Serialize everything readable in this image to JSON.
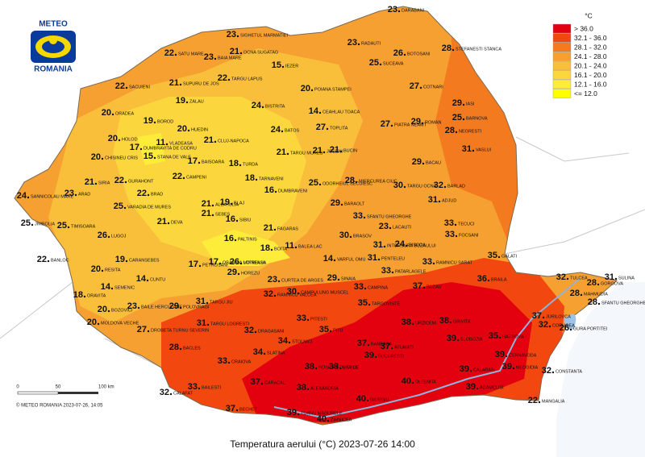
{
  "header": {
    "logo_top": "METEO",
    "logo_bottom": "ROMANIA"
  },
  "legend": {
    "unit": "°C",
    "classes": [
      {
        "label": "> 36.0",
        "color": "#e3000f"
      },
      {
        "label": "32.1 - 36.0",
        "color": "#f2470f"
      },
      {
        "label": "28.1 - 32.0",
        "color": "#f47a20"
      },
      {
        "label": "24.1 - 28.0",
        "color": "#f7a032"
      },
      {
        "label": "20.1 - 24.0",
        "color": "#f9bf3b"
      },
      {
        "label": "16.1 - 20.0",
        "color": "#fbd63c"
      },
      {
        "label": "12.1 - 16.0",
        "color": "#fdec3a"
      },
      {
        "label": "<= 12.0",
        "color": "#ffff00"
      }
    ]
  },
  "stations": [
    {
      "name": "DARABANI",
      "value": 23
    },
    {
      "name": "SIGHETUL MARMATIEI",
      "value": 23
    },
    {
      "name": "RADAUTI",
      "value": 23
    },
    {
      "name": "BOTOSANI",
      "value": 26
    },
    {
      "name": "STEFANESTI STANCA",
      "value": 28
    },
    {
      "name": "SATU MARE",
      "value": 22
    },
    {
      "name": "BAIA MARE",
      "value": 23
    },
    {
      "name": "OCNA SUGATAG",
      "value": 21
    },
    {
      "name": "IEZER",
      "value": 15
    },
    {
      "name": "SUCEAVA",
      "value": 25
    },
    {
      "name": "SUPURU DE JOS",
      "value": 21
    },
    {
      "name": "TARGU LAPUS",
      "value": 22
    },
    {
      "name": "SACUIENI",
      "value": 22
    },
    {
      "name": "POIANA STAMPEI",
      "value": 20
    },
    {
      "name": "COTNARI",
      "value": 27
    },
    {
      "name": "ZALAU",
      "value": 19
    },
    {
      "name": "BISTRITA",
      "value": 24
    },
    {
      "name": "CEAHLAU TOACA",
      "value": 14
    },
    {
      "name": "IASI",
      "value": 29
    },
    {
      "name": "ORADEA",
      "value": 20
    },
    {
      "name": "BOROD",
      "value": 19
    },
    {
      "name": "HUEDIN",
      "value": 20
    },
    {
      "name": "BARNOVA",
      "value": 25
    },
    {
      "name": "NEGRESTI",
      "value": 28
    },
    {
      "name": "TOPLITA",
      "value": 27
    },
    {
      "name": "PIATRA NEAMT",
      "value": 27
    },
    {
      "name": "ROMAN",
      "value": 29
    },
    {
      "name": "BATOS",
      "value": 24
    },
    {
      "name": "CLUJ-NAPOCA",
      "value": 21
    },
    {
      "name": "HOLOD",
      "value": 20
    },
    {
      "name": "VLADEASA",
      "value": 11
    },
    {
      "name": "STANA DE VALE",
      "value": 15
    },
    {
      "name": "DUMBRAVITA DE CODRU",
      "value": 17
    },
    {
      "name": "JOSENI",
      "value": 21
    },
    {
      "name": "BUCIN",
      "value": 21
    },
    {
      "name": "TARGU MURES",
      "value": 21
    },
    {
      "name": "BACAU",
      "value": 29
    },
    {
      "name": "VASLUI",
      "value": 31
    },
    {
      "name": "CHISINEU CRIS",
      "value": 20
    },
    {
      "name": "BAISOARA",
      "value": 17
    },
    {
      "name": "TURDA",
      "value": 18
    },
    {
      "name": "TARNAVENI",
      "value": 18
    },
    {
      "name": "MIERCUREA CIUC",
      "value": 28
    },
    {
      "name": "ODORHEIUL SECUIESC",
      "value": 25
    },
    {
      "name": "TARGU OCNA",
      "value": 30
    },
    {
      "name": "SANNICOLAU MARE",
      "value": 24
    },
    {
      "name": "ARAD",
      "value": 23
    },
    {
      "name": "SIRIA",
      "value": 21
    },
    {
      "name": "GURAHONT",
      "value": 22
    },
    {
      "name": "CAMPENI",
      "value": 22
    },
    {
      "name": "BRAD",
      "value": 22
    },
    {
      "name": "ALBA IULIA",
      "value": 21
    },
    {
      "name": "BLAJ",
      "value": 19
    },
    {
      "name": "DUMBRAVENI",
      "value": 16
    },
    {
      "name": "BARLAD",
      "value": 32
    },
    {
      "name": "ADJUD",
      "value": 31
    },
    {
      "name": "BARAOLT",
      "value": 29
    },
    {
      "name": "SFANTU GHEORGHE",
      "value": 33
    },
    {
      "name": "VARADIA DE MURES",
      "value": 25
    },
    {
      "name": "SEBES",
      "value": 21
    },
    {
      "name": "DEVA",
      "value": 21
    },
    {
      "name": "SIBIU",
      "value": 16
    },
    {
      "name": "FAGARAS",
      "value": 21
    },
    {
      "name": "LACAUTI",
      "value": 23
    },
    {
      "name": "TECUCI",
      "value": 33
    },
    {
      "name": "JIMBOLIA",
      "value": 25
    },
    {
      "name": "TIMISOARA",
      "value": 25
    },
    {
      "name": "LUGOJ",
      "value": 26
    },
    {
      "name": "PALTINIS",
      "value": 16
    },
    {
      "name": "BOITA",
      "value": 18
    },
    {
      "name": "BALEA LAC",
      "value": 11
    },
    {
      "name": "BRASOV",
      "value": 30
    },
    {
      "name": "INTORSURA BUZAULUI",
      "value": 31
    },
    {
      "name": "BISOCA",
      "value": 24
    },
    {
      "name": "FOCSANI",
      "value": 33
    },
    {
      "name": "GALATI",
      "value": 35
    },
    {
      "name": "BANLOC",
      "value": 22
    },
    {
      "name": "CARANSEBES",
      "value": 19
    },
    {
      "name": "RESITA",
      "value": 20
    },
    {
      "name": "PETROSANI",
      "value": 17
    },
    {
      "name": "OBARSIA LOTRULUI",
      "value": 17
    },
    {
      "name": "VOINEASA",
      "value": 26
    },
    {
      "name": "CURTEA DE ARGES",
      "value": 23
    },
    {
      "name": "VARFUL OMU",
      "value": 14
    },
    {
      "name": "PENTELEU",
      "value": 31
    },
    {
      "name": "RAMNICU SARAT",
      "value": 33
    },
    {
      "name": "PATARLAGELE",
      "value": 33
    },
    {
      "name": "BRAILA",
      "value": 36
    },
    {
      "name": "TULCEA",
      "value": 32
    },
    {
      "name": "GORGOVA",
      "value": 28
    },
    {
      "name": "SULINA",
      "value": 31
    },
    {
      "name": "CUNTU",
      "value": 14
    },
    {
      "name": "SEMENIC",
      "value": 14
    },
    {
      "name": "HOREZU",
      "value": 29
    },
    {
      "name": "RAMNICU VALCEA",
      "value": 32
    },
    {
      "name": "CAMPULUNG MUSCEL",
      "value": 30
    },
    {
      "name": "SINAIA",
      "value": 29
    },
    {
      "name": "CAMPINA",
      "value": 33
    },
    {
      "name": "BUZAU",
      "value": 37
    },
    {
      "name": "MAHMUDIA",
      "value": 28
    },
    {
      "name": "SFANTU GHEORGHE",
      "value": 28
    },
    {
      "name": "ORAVITA",
      "value": 18
    },
    {
      "name": "BOZOVICI",
      "value": 20
    },
    {
      "name": "BAILE HERCULANE",
      "value": 23
    },
    {
      "name": "TARGU JIU",
      "value": 31
    },
    {
      "name": "POLOVRAGI",
      "value": 29
    },
    {
      "name": "PITESTI",
      "value": 33
    },
    {
      "name": "TARGOVISTE",
      "value": 35
    },
    {
      "name": "MOLDOVA VECHE",
      "value": 20
    },
    {
      "name": "DROBETA TURNU SEVERIN",
      "value": 27
    },
    {
      "name": "TARGU LOGRESTI",
      "value": 31
    },
    {
      "name": "DRAGASANI",
      "value": 32
    },
    {
      "name": "URZICENI",
      "value": 38
    },
    {
      "name": "GRIVITA",
      "value": 38
    },
    {
      "name": "SLOBOZIA",
      "value": 39
    },
    {
      "name": "JURILOVCA",
      "value": 37
    },
    {
      "name": "CORUGEA",
      "value": 32
    },
    {
      "name": "GURA PORTITEI",
      "value": 26
    },
    {
      "name": "BACLES",
      "value": 28
    },
    {
      "name": "PITU",
      "value": 35
    },
    {
      "name": "STOLNICI",
      "value": 34
    },
    {
      "name": "BANEASA",
      "value": 37
    },
    {
      "name": "AFUMATI",
      "value": 37
    },
    {
      "name": "BUCURESTI",
      "value": 39
    },
    {
      "name": "HARSOVA",
      "value": 35
    },
    {
      "name": "CERNAVODA",
      "value": 39
    },
    {
      "name": "CONSTANTA",
      "value": 32
    },
    {
      "name": "CRAIOVA",
      "value": 33
    },
    {
      "name": "SLATINA",
      "value": 34
    },
    {
      "name": "ROSIORII DE VEDE",
      "value": 38
    },
    {
      "name": "VIDELE",
      "value": 38
    },
    {
      "name": "OLTENITA",
      "value": 40
    },
    {
      "name": "MEDGIDIA",
      "value": 39
    },
    {
      "name": "ADAMCLISI",
      "value": 39
    },
    {
      "name": "CALAFAT",
      "value": 32
    },
    {
      "name": "BAILESTI",
      "value": 33
    },
    {
      "name": "CARACAL",
      "value": 37
    },
    {
      "name": "ALEXANDRIA",
      "value": 38
    },
    {
      "name": "TURNU MAGURELE",
      "value": 39
    },
    {
      "name": "BECHET",
      "value": 37
    },
    {
      "name": "GIURGIU",
      "value": 40
    },
    {
      "name": "ZIMNICEA",
      "value": 40
    },
    {
      "name": "MANGALIA",
      "value": 22
    },
    {
      "name": "CALARASI",
      "value": 39
    }
  ],
  "scale": {
    "labels": [
      "0",
      "50",
      "100 km"
    ]
  },
  "footer": {
    "credit": "© METEO ROMANIA 2023-07-26, 14:05",
    "caption": "Temperatura aerului (°C) 2023-07-26 14:00"
  }
}
